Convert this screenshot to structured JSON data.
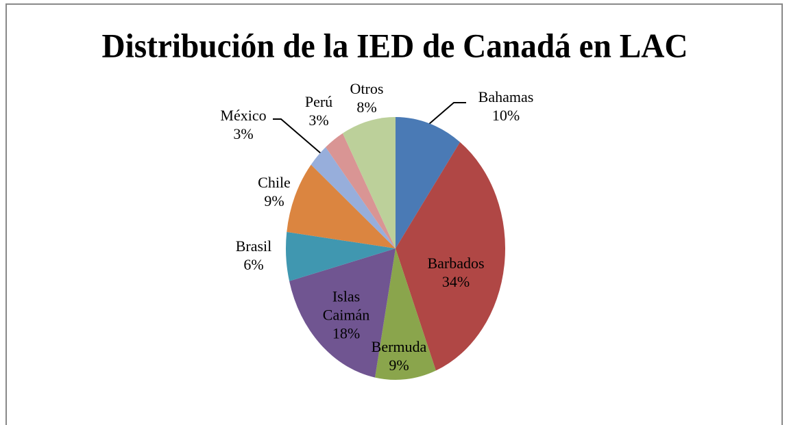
{
  "chart_data": {
    "type": "pie",
    "title": "Distribución de la IED de Canadá en LAC",
    "categories": [
      "Bahamas",
      "Barbados",
      "Bermuda",
      "Islas Caimán",
      "Brasil",
      "Chile",
      "México",
      "Perú",
      "Otros"
    ],
    "values": [
      10,
      34,
      9,
      18,
      6,
      9,
      3,
      3,
      8
    ],
    "value_labels": [
      "10%",
      "34%",
      "9%",
      "18%",
      "6%",
      "9%",
      "3%",
      "3%",
      "8%"
    ],
    "colors": [
      "#4a7ab5",
      "#b04745",
      "#8aa54c",
      "#705591",
      "#4097b0",
      "#db8540",
      "#97aedb",
      "#d99594",
      "#bcd09a"
    ]
  }
}
